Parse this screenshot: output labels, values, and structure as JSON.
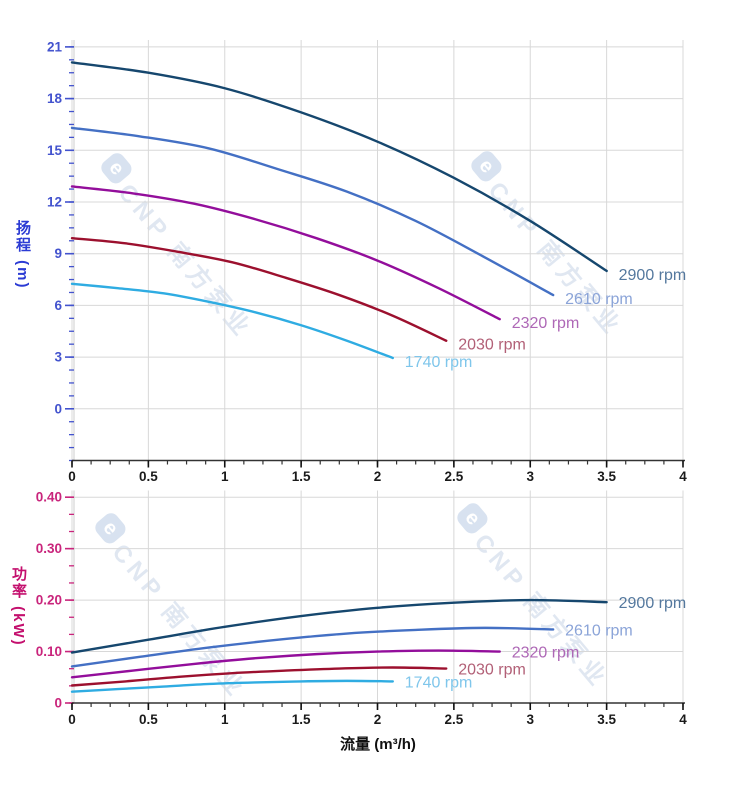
{
  "watermark": {
    "logo_glyph": "e",
    "brand_text": "CNP 南方泵业"
  },
  "chart_data": [
    {
      "type": "line",
      "title": "",
      "xlabel": "",
      "ylabel": "扬程 (m)",
      "xlim": [
        0,
        4
      ],
      "ylim": [
        -3,
        21.4
      ],
      "grid": true,
      "legend_position": "curve-end-labels",
      "x_ticks": [
        0,
        0.5,
        1,
        1.5,
        2,
        2.5,
        3,
        3.5,
        4
      ],
      "x_tick_labels": [
        "0",
        "0.5",
        "1",
        "1.5",
        "2",
        "2.5",
        "3",
        "3.5",
        "4"
      ],
      "x_minor_step": 0.125,
      "y_ticks": [
        0,
        3,
        6,
        9,
        12,
        15,
        18,
        21
      ],
      "y_tick_labels": [
        "0",
        "3",
        "6",
        "9",
        "12",
        "15",
        "18",
        "21"
      ],
      "y_minor_step": 0.75,
      "axis_color": "#4353CE",
      "series": [
        {
          "name": "2900 rpm",
          "color": "#16476E",
          "label_color": "#54789E",
          "points": [
            [
              0,
              20.1
            ],
            [
              0.5,
              19.5
            ],
            [
              1,
              18.6
            ],
            [
              1.5,
              17.2
            ],
            [
              2,
              15.5
            ],
            [
              2.5,
              13.4
            ],
            [
              3,
              10.9
            ],
            [
              3.5,
              8.0
            ]
          ]
        },
        {
          "name": "2610 rpm",
          "color": "#4470C4",
          "label_color": "#8BA4D8",
          "points": [
            [
              0,
              16.3
            ],
            [
              0.45,
              15.8
            ],
            [
              0.9,
              15.1
            ],
            [
              1.35,
              13.9
            ],
            [
              1.8,
              12.6
            ],
            [
              2.25,
              10.9
            ],
            [
              2.7,
              8.8
            ],
            [
              3.15,
              6.6
            ]
          ]
        },
        {
          "name": "2320 rpm",
          "color": "#930E9B",
          "label_color": "#AE68B6",
          "points": [
            [
              0,
              12.9
            ],
            [
              0.4,
              12.5
            ],
            [
              0.8,
              11.9
            ],
            [
              1.2,
              11.0
            ],
            [
              1.6,
              9.9
            ],
            [
              2.0,
              8.6
            ],
            [
              2.4,
              7.0
            ],
            [
              2.8,
              5.2
            ]
          ]
        },
        {
          "name": "2030 rpm",
          "color": "#9C102E",
          "label_color": "#B26077",
          "points": [
            [
              0,
              9.9
            ],
            [
              0.35,
              9.6
            ],
            [
              0.7,
              9.1
            ],
            [
              1.05,
              8.5
            ],
            [
              1.4,
              7.6
            ],
            [
              1.75,
              6.6
            ],
            [
              2.1,
              5.4
            ],
            [
              2.45,
              3.95
            ]
          ]
        },
        {
          "name": "1740 rpm",
          "color": "#2FACE2",
          "label_color": "#7FC6EB",
          "points": [
            [
              0,
              7.25
            ],
            [
              0.3,
              7.0
            ],
            [
              0.6,
              6.7
            ],
            [
              0.9,
              6.2
            ],
            [
              1.2,
              5.6
            ],
            [
              1.5,
              4.85
            ],
            [
              1.8,
              3.95
            ],
            [
              2.1,
              2.95
            ]
          ]
        }
      ]
    },
    {
      "type": "line",
      "title": "",
      "xlabel": "流量 (m³/h)",
      "ylabel": "功率 (kW)",
      "xlim": [
        0,
        4
      ],
      "ylim": [
        0,
        0.413
      ],
      "grid": true,
      "legend_position": "curve-end-labels",
      "x_ticks": [
        0,
        0.5,
        1,
        1.5,
        2,
        2.5,
        3,
        3.5,
        4
      ],
      "x_tick_labels": [
        "0",
        "0.5",
        "1",
        "1.5",
        "2",
        "2.5",
        "3",
        "3.5",
        "4"
      ],
      "x_minor_step": 0.125,
      "y_ticks": [
        0,
        0.1,
        0.2,
        0.3,
        0.4
      ],
      "y_tick_labels": [
        "0",
        "0.10",
        "0.20",
        "0.30",
        "0.40"
      ],
      "y_minor_step": 0.03333,
      "axis_color": "#C9257C",
      "series": [
        {
          "name": "2900 rpm",
          "color": "#16476E",
          "label_color": "#54789E",
          "points": [
            [
              0,
              0.098
            ],
            [
              0.5,
              0.123
            ],
            [
              1,
              0.148
            ],
            [
              1.5,
              0.169
            ],
            [
              2,
              0.185
            ],
            [
              2.5,
              0.195
            ],
            [
              3,
              0.2
            ],
            [
              3.5,
              0.196
            ]
          ]
        },
        {
          "name": "2610 rpm",
          "color": "#4470C4",
          "label_color": "#8BA4D8",
          "points": [
            [
              0,
              0.071
            ],
            [
              0.45,
              0.09
            ],
            [
              0.9,
              0.108
            ],
            [
              1.35,
              0.123
            ],
            [
              1.8,
              0.135
            ],
            [
              2.25,
              0.142
            ],
            [
              2.7,
              0.146
            ],
            [
              3.15,
              0.143
            ]
          ]
        },
        {
          "name": "2320 rpm",
          "color": "#930E9B",
          "label_color": "#AE68B6",
          "points": [
            [
              0,
              0.05
            ],
            [
              0.4,
              0.063
            ],
            [
              0.8,
              0.076
            ],
            [
              1.2,
              0.087
            ],
            [
              1.6,
              0.095
            ],
            [
              2.0,
              0.1
            ],
            [
              2.4,
              0.102
            ],
            [
              2.8,
              0.1
            ]
          ]
        },
        {
          "name": "2030 rpm",
          "color": "#9C102E",
          "label_color": "#B26077",
          "points": [
            [
              0,
              0.034
            ],
            [
              0.35,
              0.042
            ],
            [
              0.7,
              0.051
            ],
            [
              1.05,
              0.058
            ],
            [
              1.4,
              0.063
            ],
            [
              1.75,
              0.067
            ],
            [
              2.1,
              0.069
            ],
            [
              2.45,
              0.067
            ]
          ]
        },
        {
          "name": "1740 rpm",
          "color": "#2FACE2",
          "label_color": "#7FC6EB",
          "points": [
            [
              0,
              0.022
            ],
            [
              0.3,
              0.027
            ],
            [
              0.6,
              0.032
            ],
            [
              0.9,
              0.037
            ],
            [
              1.2,
              0.04
            ],
            [
              1.5,
              0.042
            ],
            [
              1.8,
              0.043
            ],
            [
              2.1,
              0.042
            ]
          ]
        }
      ]
    }
  ],
  "style": {
    "grid_color": "#D8D8D8",
    "x_axis_color": "#333333",
    "x_label_color": "#1a1a1a"
  }
}
